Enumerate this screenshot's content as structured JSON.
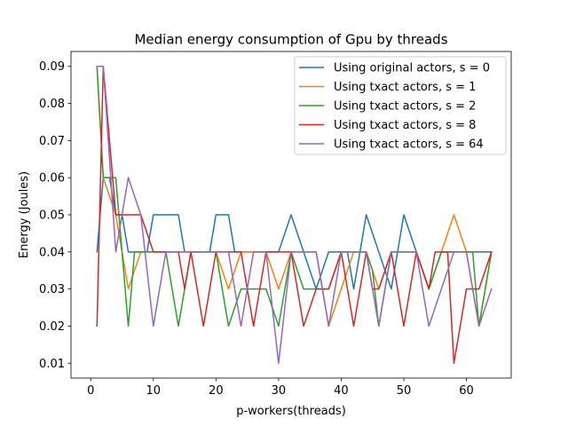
{
  "chart_data": {
    "type": "line",
    "title": "Median energy consumption of Gpu by threads",
    "xlabel": "p-workers(threads)",
    "ylabel": "Energy (Joules)",
    "xlim": [
      -3.15,
      67.15
    ],
    "ylim": [
      0.006,
      0.094
    ],
    "xticks": [
      0,
      10,
      20,
      30,
      40,
      50,
      60
    ],
    "yticks": [
      0.01,
      0.02,
      0.03,
      0.04,
      0.05,
      0.06,
      0.07,
      0.08,
      0.09
    ],
    "ytick_labels": [
      "0.01",
      "0.02",
      "0.03",
      "0.04",
      "0.05",
      "0.06",
      "0.07",
      "0.08",
      "0.09"
    ],
    "legend_position": "upper right",
    "grid": false,
    "x": [
      1,
      2,
      3,
      4,
      5,
      6,
      7,
      8,
      9,
      10,
      11,
      12,
      13,
      14,
      15,
      16,
      17,
      18,
      19,
      20,
      21,
      22,
      23,
      24,
      25,
      26,
      27,
      28,
      29,
      30,
      31,
      32,
      33,
      34,
      35,
      36,
      37,
      38,
      39,
      40,
      41,
      42,
      43,
      44,
      45,
      46,
      47,
      48,
      49,
      50,
      51,
      52,
      53,
      54,
      55,
      56,
      57,
      58,
      59,
      60,
      61,
      62,
      63,
      64
    ],
    "series": [
      {
        "name": "Using original actors, s = 0",
        "color": "#1f77b4",
        "values": [
          0.04,
          0.06,
          0.06,
          0.05,
          0.05,
          0.04,
          0.04,
          0.04,
          0.04,
          0.05,
          0.05,
          0.05,
          0.05,
          0.05,
          0.04,
          0.04,
          0.04,
          0.04,
          0.04,
          0.05,
          0.05,
          0.05,
          0.04,
          0.04,
          0.04,
          0.04,
          0.04,
          0.04,
          0.04,
          0.04,
          0.045,
          0.05,
          0.045,
          0.04,
          0.035,
          0.03,
          0.035,
          0.04,
          0.04,
          0.04,
          0.04,
          0.03,
          0.04,
          0.05,
          0.045,
          0.04,
          0.035,
          0.03,
          0.04,
          0.05,
          0.045,
          0.04,
          0.035,
          0.03,
          0.035,
          0.04,
          0.04,
          0.04,
          0.04,
          0.04,
          0.04,
          0.04,
          0.04,
          0.04
        ]
      },
      {
        "name": "Using txact actors, s = 1",
        "color": "#ff7f0e",
        "values": [
          0.09,
          0.06,
          0.055,
          0.05,
          0.04,
          0.03,
          0.035,
          0.04,
          0.04,
          0.04,
          0.04,
          0.04,
          0.04,
          0.04,
          0.04,
          0.04,
          0.04,
          0.04,
          0.04,
          0.04,
          0.035,
          0.03,
          0.035,
          0.04,
          0.04,
          0.04,
          0.04,
          0.04,
          0.035,
          0.03,
          0.035,
          0.04,
          0.04,
          0.04,
          0.04,
          0.04,
          0.03,
          0.02,
          0.025,
          0.03,
          0.035,
          0.04,
          0.04,
          0.04,
          0.035,
          0.03,
          0.035,
          0.04,
          0.04,
          0.04,
          0.04,
          0.04,
          0.035,
          0.03,
          0.035,
          0.04,
          0.045,
          0.05,
          0.045,
          0.04,
          0.03,
          0.02,
          0.03,
          0.04
        ]
      },
      {
        "name": "Using txact actors, s = 2",
        "color": "#2ca02c",
        "values": [
          0.09,
          0.06,
          0.06,
          0.06,
          0.04,
          0.02,
          0.04,
          0.04,
          0.04,
          0.04,
          0.04,
          0.04,
          0.03,
          0.02,
          0.03,
          0.04,
          0.04,
          0.04,
          0.04,
          0.04,
          0.03,
          0.02,
          0.025,
          0.03,
          0.03,
          0.03,
          0.03,
          0.03,
          0.025,
          0.02,
          0.03,
          0.04,
          0.035,
          0.03,
          0.03,
          0.03,
          0.03,
          0.03,
          0.035,
          0.04,
          0.04,
          0.04,
          0.04,
          0.04,
          0.035,
          0.02,
          0.03,
          0.04,
          0.04,
          0.04,
          0.04,
          0.04,
          0.035,
          0.03,
          0.035,
          0.04,
          0.04,
          0.04,
          0.04,
          0.04,
          0.04,
          0.02,
          0.03,
          0.04
        ]
      },
      {
        "name": "Using txact actors, s = 8",
        "color": "#d62728",
        "values": [
          0.02,
          0.09,
          0.07,
          0.05,
          0.05,
          0.05,
          0.05,
          0.05,
          0.045,
          0.04,
          0.04,
          0.04,
          0.04,
          0.04,
          0.03,
          0.04,
          0.03,
          0.02,
          0.03,
          0.04,
          0.04,
          0.04,
          0.04,
          0.04,
          0.03,
          0.02,
          0.03,
          0.04,
          0.04,
          0.04,
          0.04,
          0.04,
          0.03,
          0.02,
          0.025,
          0.03,
          0.03,
          0.03,
          0.035,
          0.04,
          0.03,
          0.02,
          0.03,
          0.04,
          0.03,
          0.03,
          0.035,
          0.04,
          0.03,
          0.02,
          0.03,
          0.04,
          0.035,
          0.03,
          0.04,
          0.04,
          0.04,
          0.01,
          0.02,
          0.03,
          0.03,
          0.03,
          0.035,
          0.04
        ]
      },
      {
        "name": "Using txact actors, s = 64",
        "color": "#9467bd",
        "values": [
          0.09,
          0.09,
          0.065,
          0.04,
          0.05,
          0.06,
          0.055,
          0.05,
          0.035,
          0.02,
          0.03,
          0.04,
          0.04,
          0.04,
          0.04,
          0.04,
          0.04,
          0.04,
          0.04,
          0.04,
          0.04,
          0.04,
          0.03,
          0.02,
          0.03,
          0.04,
          0.04,
          0.04,
          0.025,
          0.01,
          0.025,
          0.04,
          0.04,
          0.04,
          0.04,
          0.04,
          0.03,
          0.02,
          0.03,
          0.04,
          0.04,
          0.04,
          0.04,
          0.04,
          0.03,
          0.02,
          0.03,
          0.04,
          0.04,
          0.04,
          0.04,
          0.04,
          0.03,
          0.02,
          0.025,
          0.03,
          0.035,
          0.04,
          0.04,
          0.04,
          0.03,
          0.02,
          0.025,
          0.03
        ]
      }
    ]
  }
}
